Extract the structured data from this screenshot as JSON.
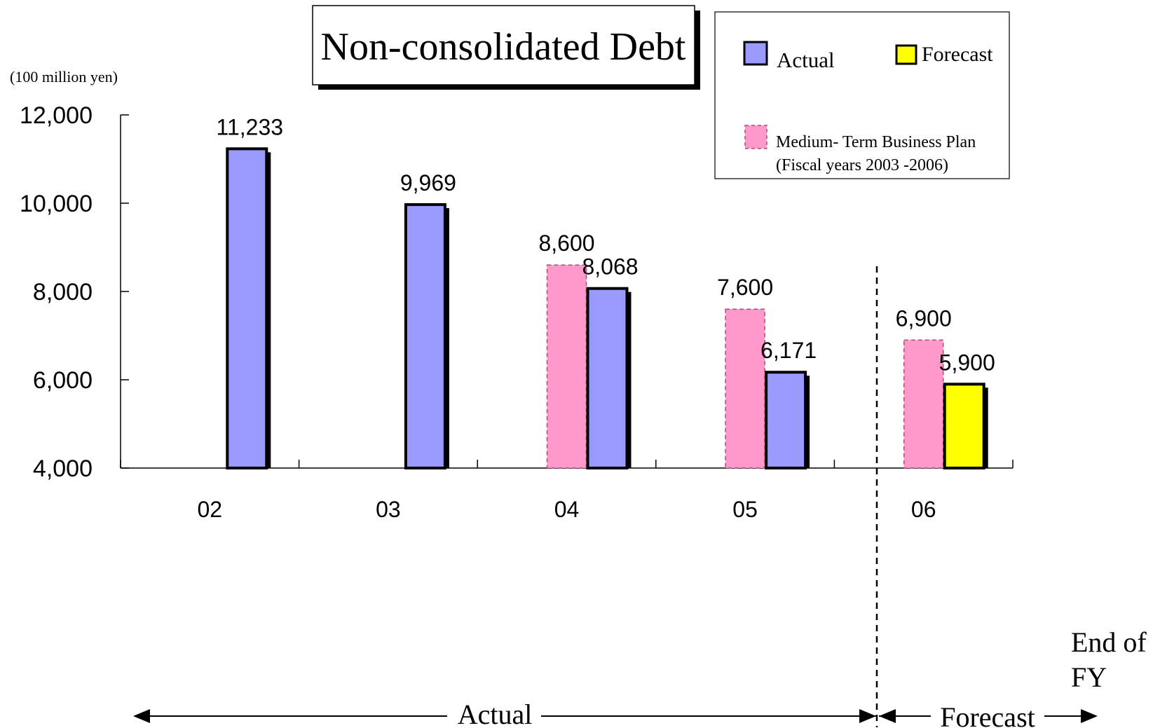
{
  "chart_data": {
    "type": "bar",
    "title": "Non-consolidated Debt",
    "unit_label": "(100 million yen)",
    "categories": [
      "02",
      "03",
      "04",
      "05",
      "06"
    ],
    "series": [
      {
        "name": "Medium- Term Business Plan (Fiscal years 2003 -2006)",
        "key": "plan",
        "values": [
          null,
          null,
          8600,
          7600,
          6900
        ],
        "color": "#ff99cc",
        "border": "dashed"
      },
      {
        "name": "Actual",
        "key": "actual",
        "values": [
          11233,
          9969,
          8068,
          6171,
          null
        ],
        "color": "#9999ff",
        "border": "solid"
      },
      {
        "name": "Forecast",
        "key": "forecast",
        "values": [
          null,
          null,
          null,
          null,
          5900
        ],
        "color": "#ffff00",
        "border": "solid"
      }
    ],
    "data_labels": {
      "plan": [
        "",
        "",
        "8,600",
        "7,600",
        "6,900"
      ],
      "actual": [
        "11,233",
        "9,969",
        "8,068",
        "6,171",
        ""
      ],
      "forecast": [
        "",
        "",
        "",
        "",
        "5,900"
      ]
    },
    "ylim": [
      4000,
      12000
    ],
    "yticks": [
      4000,
      6000,
      8000,
      10000,
      12000
    ],
    "ytick_labels": [
      "4,000",
      "6,000",
      "8,000",
      "10,000",
      "12,000"
    ],
    "legend": {
      "placement": "top-right",
      "actual_label": "Actual",
      "forecast_label": "Forecast",
      "plan_label_line1": "Medium- Term Business Plan",
      "plan_label_line2": "(Fiscal years 2003 -2006)"
    },
    "xlabel_line1": "End of",
    "xlabel_line2": "FY",
    "period_actual": "Actual",
    "period_forecast": "Forecast"
  }
}
